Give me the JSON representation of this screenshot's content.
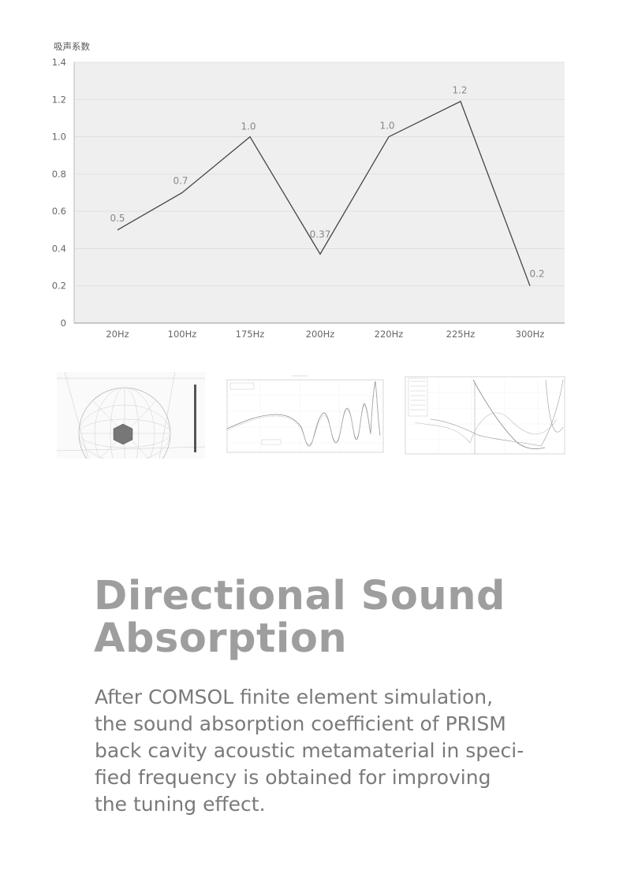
{
  "chart_data": {
    "type": "line",
    "ylabel": "吸声系数",
    "xlabel": "",
    "categories": [
      "20Hz",
      "100Hz",
      "175Hz",
      "200Hz",
      "220Hz",
      "225Hz",
      "300Hz"
    ],
    "values": [
      0.5,
      0.7,
      1.0,
      0.37,
      1.0,
      1.19,
      0.2
    ],
    "data_labels": [
      "0.5",
      "0.7",
      "1.0",
      "0.37",
      "1.0",
      "1.2",
      "0.2"
    ],
    "y_ticks": [
      "0",
      "0.2",
      "0.4",
      "0.6",
      "0.8",
      "1.0",
      "1.2",
      "1.4"
    ],
    "ylim": [
      0,
      1.4
    ],
    "grid": true,
    "colors": {
      "plot_bg": "#efefef",
      "line": "#444444",
      "grid": "#dcdcdc",
      "text": "#666666"
    }
  },
  "thumbnails": [
    {
      "name": "sphere-mesh-simulation"
    },
    {
      "name": "absorption-curve-plot"
    },
    {
      "name": "multi-series-frequency-plot"
    }
  ],
  "headline": {
    "line1": "Directional Sound",
    "line2": "Absorption"
  },
  "body": {
    "line1": "After COMSOL finite element simulation,",
    "line2": "the sound absorption coefficient of PRISM",
    "line3": "back cavity acoustic metamaterial in speci-",
    "line4": "fied frequency is obtained for improving",
    "line5": "the tuning effect."
  }
}
